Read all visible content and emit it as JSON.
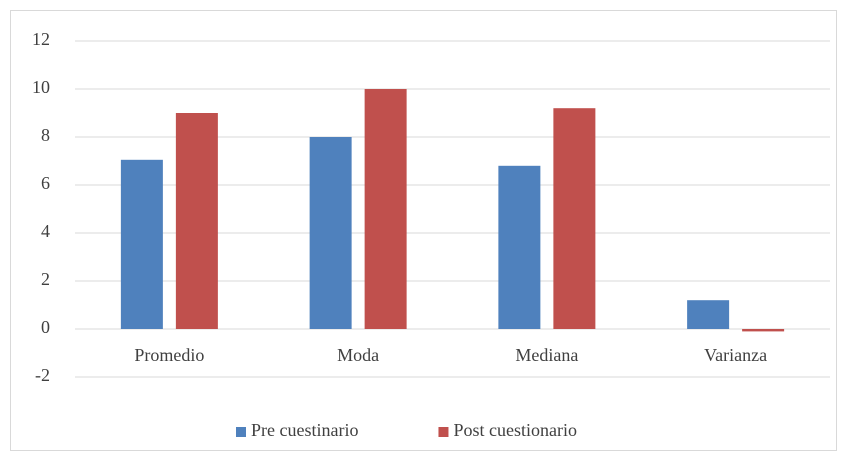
{
  "chart_data": {
    "type": "bar",
    "categories": [
      "Promedio",
      "Moda",
      "Mediana",
      "Varianza"
    ],
    "series": [
      {
        "name": "Pre cuestinario",
        "color": "#4f81bd",
        "values": [
          7.05,
          8,
          6.8,
          1.2
        ]
      },
      {
        "name": "Post cuestionario",
        "color": "#c0504d",
        "values": [
          9.0,
          10,
          9.2,
          -0.1
        ]
      }
    ],
    "ylim": [
      -2,
      12
    ],
    "yticks": [
      -2,
      0,
      2,
      4,
      6,
      8,
      10,
      12
    ],
    "grid": true,
    "legend": "bottom"
  }
}
